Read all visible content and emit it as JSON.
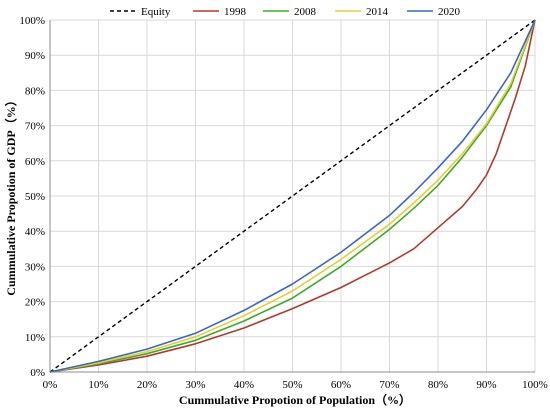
{
  "chart_data": {
    "type": "line",
    "title": "",
    "xlabel": "Cummulative Propotion of Population（%）",
    "ylabel": "Cummulative Propotion of GDP（%）",
    "xlim": [
      0,
      100
    ],
    "ylim": [
      0,
      100
    ],
    "x_ticks": [
      "0%",
      "10%",
      "20%",
      "30%",
      "40%",
      "50%",
      "60%",
      "70%",
      "80%",
      "90%",
      "100%"
    ],
    "y_ticks": [
      "0%",
      "10%",
      "20%",
      "30%",
      "40%",
      "50%",
      "60%",
      "70%",
      "80%",
      "90%",
      "100%"
    ],
    "grid": true,
    "legend_position": "top",
    "series": [
      {
        "name": "Equity",
        "color": "#000000",
        "dash": true,
        "x": [
          0,
          100
        ],
        "y": [
          0,
          100
        ]
      },
      {
        "name": "1998",
        "color": "#b03a2e",
        "x": [
          0,
          10,
          20,
          30,
          40,
          50,
          60,
          65,
          70,
          75,
          80,
          85,
          88,
          90,
          92,
          94,
          96,
          98,
          100
        ],
        "y": [
          0,
          2,
          4.5,
          8,
          12.5,
          18,
          24,
          27.5,
          31,
          35,
          41,
          47,
          52,
          56,
          62,
          70,
          78,
          87,
          100
        ]
      },
      {
        "name": "2008",
        "color": "#3daa2e",
        "x": [
          0,
          10,
          20,
          30,
          40,
          50,
          60,
          70,
          75,
          80,
          85,
          90,
          95,
          100
        ],
        "y": [
          0,
          2.3,
          5.2,
          9,
          14.5,
          21,
          30,
          40.5,
          46.5,
          53,
          61,
          70,
          81,
          100
        ]
      },
      {
        "name": "2014",
        "color": "#e6cf2d",
        "x": [
          0,
          10,
          20,
          30,
          40,
          50,
          60,
          70,
          75,
          80,
          85,
          90,
          95,
          100
        ],
        "y": [
          0,
          2.6,
          5.8,
          10,
          16,
          23,
          32,
          42,
          48,
          54.5,
          62,
          70.5,
          82,
          100
        ]
      },
      {
        "name": "2020",
        "color": "#3b66c8",
        "x": [
          0,
          10,
          20,
          30,
          40,
          50,
          60,
          70,
          75,
          80,
          85,
          90,
          95,
          100
        ],
        "y": [
          0,
          3,
          6.5,
          11,
          17.5,
          25,
          34,
          44.5,
          51,
          58,
          65.5,
          74.5,
          85,
          100
        ]
      }
    ]
  }
}
